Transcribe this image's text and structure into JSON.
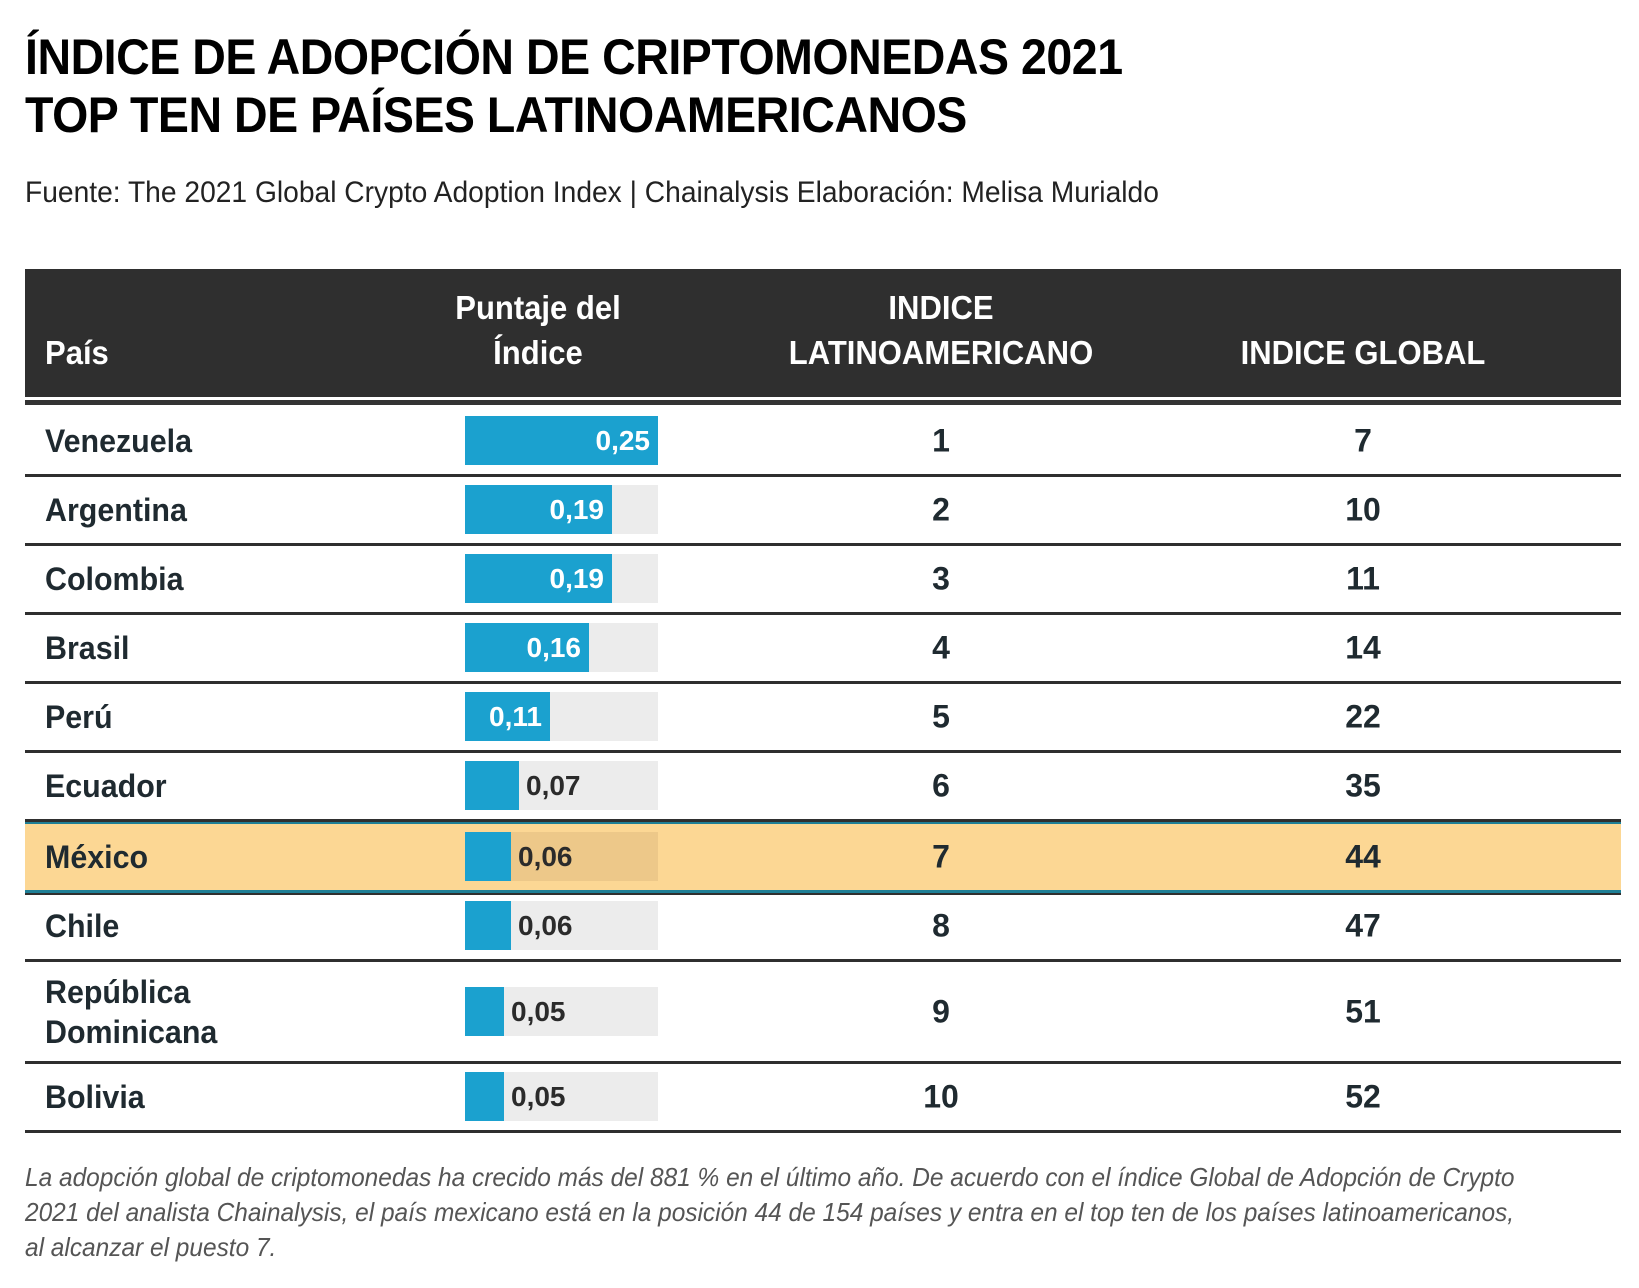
{
  "header": {
    "title_line1": "ÍNDICE DE ADOPCIÓN DE CRIPTOMONEDAS 2021",
    "title_line2": "TOP TEN DE PAÍSES LATINOAMERICANOS",
    "subtitle": "Fuente: The 2021 Global Crypto Adoption Index | Chainalysis Elaboración: Melisa Murialdo"
  },
  "colors": {
    "bar": "#1ba1cf",
    "bar_track": "#ececec",
    "highlight_row": "#fcd794",
    "header_bg": "#2f2f2f"
  },
  "chart_data": {
    "type": "table",
    "title": "ÍNDICE DE ADOPCIÓN DE CRIPTOMONEDAS 2021 — TOP TEN DE PAÍSES LATINOAMERICANOS",
    "columns": [
      "País",
      "Puntaje del Índice",
      "INDICE LATINOAMERICANO",
      "INDICE GLOBAL"
    ],
    "column_lines": {
      "country": [
        "País"
      ],
      "score": [
        "Puntaje del",
        "Índice"
      ],
      "latam": [
        "INDICE",
        "LATINOAMERICANO"
      ],
      "global": [
        "INDICE GLOBAL"
      ]
    },
    "bar_scale_max": 0.25,
    "highlighted_country": "México",
    "rows": [
      {
        "country": "Venezuela",
        "score": 0.25,
        "score_label": "0,25",
        "latam_rank": "1",
        "global_rank": "7"
      },
      {
        "country": "Argentina",
        "score": 0.19,
        "score_label": "0,19",
        "latam_rank": "2",
        "global_rank": "10"
      },
      {
        "country": "Colombia",
        "score": 0.19,
        "score_label": "0,19",
        "latam_rank": "3",
        "global_rank": "11"
      },
      {
        "country": "Brasil",
        "score": 0.16,
        "score_label": "0,16",
        "latam_rank": "4",
        "global_rank": "14"
      },
      {
        "country": "Perú",
        "score": 0.11,
        "score_label": "0,11",
        "latam_rank": "5",
        "global_rank": "22"
      },
      {
        "country": "Ecuador",
        "score": 0.07,
        "score_label": "0,07",
        "latam_rank": "6",
        "global_rank": "35"
      },
      {
        "country": "México",
        "score": 0.06,
        "score_label": "0,06",
        "latam_rank": "7",
        "global_rank": "44"
      },
      {
        "country": "Chile",
        "score": 0.06,
        "score_label": "0,06",
        "latam_rank": "8",
        "global_rank": "47"
      },
      {
        "country": "República Dominicana",
        "score": 0.05,
        "score_label": "0,05",
        "latam_rank": "9",
        "global_rank": "51"
      },
      {
        "country": "Bolivia",
        "score": 0.05,
        "score_label": "0,05",
        "latam_rank": "10",
        "global_rank": "52"
      }
    ]
  },
  "footer": {
    "note": "La adopción global de criptomonedas ha crecido más del 881 % en el último año. De acuerdo con el índice Global de Adopción de Crypto 2021 del analista Chainalysis, el país mexicano está en la posición 44 de 154 países y entra en el top ten de los países latinoamericanos, al alcanzar el puesto 7."
  }
}
